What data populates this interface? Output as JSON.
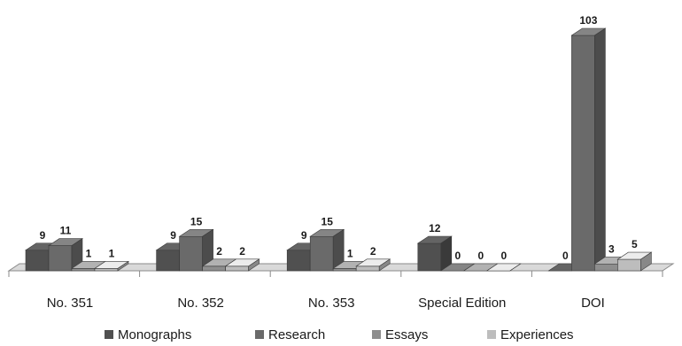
{
  "chart_data": {
    "type": "bar",
    "style": "3d-clustered-column",
    "categories": [
      "No. 351",
      "No. 352",
      "No. 353",
      "Special Edition",
      "DOI"
    ],
    "series": [
      {
        "name": "Monographs",
        "values": [
          9,
          9,
          9,
          12,
          0
        ],
        "color": "#505050"
      },
      {
        "name": "Research",
        "values": [
          11,
          15,
          15,
          0,
          103
        ],
        "color": "#6a6a6a"
      },
      {
        "name": "Essays",
        "values": [
          1,
          2,
          1,
          0,
          3
        ],
        "color": "#8e8e8e"
      },
      {
        "name": "Experiences",
        "values": [
          1,
          2,
          2,
          0,
          5
        ],
        "color": "#bdbdbd"
      }
    ],
    "title": "",
    "xlabel": "",
    "ylabel": "",
    "ylim": [
      0,
      103
    ],
    "grid": false,
    "legend_position": "bottom"
  }
}
